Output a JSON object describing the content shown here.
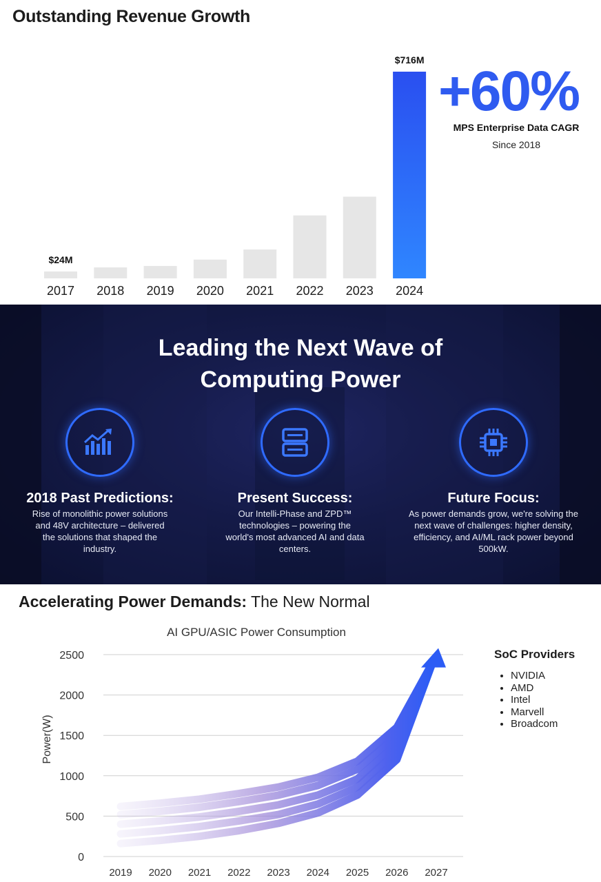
{
  "revenue": {
    "title": "Outstanding Revenue Growth",
    "cagr_value": "+60%",
    "cagr_label": "MPS Enterprise Data CAGR",
    "cagr_since": "Since 2018",
    "colors": {
      "bar": "#e6e6e6",
      "highlight": "#2f5bf0"
    }
  },
  "computing": {
    "title_line1": "Leading the Next Wave of",
    "title_line2": "Computing Power",
    "cards": [
      {
        "icon": "chart-trend-icon",
        "heading": "2018 Past Predictions:",
        "text": "Rise of monolithic power solutions and 48V architecture – delivered the solutions that shaped the industry."
      },
      {
        "icon": "server-icon",
        "heading": "Present Success:",
        "text": "Our Intelli-Phase and ZPD™ technologies – powering the world's most advanced AI and data centers."
      },
      {
        "icon": "chip-icon",
        "heading": "Future Focus:",
        "text": "As power demands grow, we're solving the next wave of challenges: higher density, efficiency, and AI/ML rack power beyond 500kW."
      }
    ]
  },
  "power": {
    "title_bold": "Accelerating Power Demands:",
    "title_rest": " The New Normal",
    "legend_title": "SoC Providers",
    "providers": [
      "NVIDIA",
      "AMD",
      "Intel",
      "Marvell",
      "Broadcom"
    ]
  },
  "chart_data": [
    {
      "type": "bar",
      "title": "Outstanding Revenue Growth",
      "categories": [
        "2017",
        "2018",
        "2019",
        "2020",
        "2021",
        "2022",
        "2023",
        "2024"
      ],
      "values": [
        24,
        38,
        43,
        65,
        100,
        218,
        283,
        716
      ],
      "unit": "$M",
      "data_labels": {
        "2017": "$24M",
        "2024": "$716M"
      },
      "highlight": "2024",
      "grid": false
    },
    {
      "type": "area",
      "title": "AI GPU/ASIC Power Consumption",
      "xlabel": "",
      "ylabel": "Power(W)",
      "x": [
        "2019",
        "2020",
        "2021",
        "2022",
        "2023",
        "2024",
        "2025",
        "2026",
        "2027"
      ],
      "yticks": [
        0,
        500,
        1000,
        1500,
        2000,
        2500
      ],
      "ylim": [
        0,
        2500
      ],
      "grid": true,
      "series": [
        {
          "values": [
            620,
            660,
            710,
            780,
            860,
            980,
            1180,
            1600,
            2580
          ]
        },
        {
          "values": [
            520,
            560,
            610,
            680,
            760,
            880,
            1080,
            1500,
            2580
          ]
        },
        {
          "values": [
            400,
            440,
            490,
            560,
            640,
            760,
            960,
            1400,
            2580
          ]
        },
        {
          "values": [
            280,
            320,
            370,
            440,
            520,
            650,
            860,
            1300,
            2580
          ]
        },
        {
          "values": [
            160,
            200,
            250,
            320,
            410,
            540,
            760,
            1200,
            2580
          ]
        }
      ],
      "legend": {
        "title": "SoC Providers",
        "placement": "right",
        "entries": [
          "NVIDIA",
          "AMD",
          "Intel",
          "Marvell",
          "Broadcom"
        ]
      }
    }
  ]
}
